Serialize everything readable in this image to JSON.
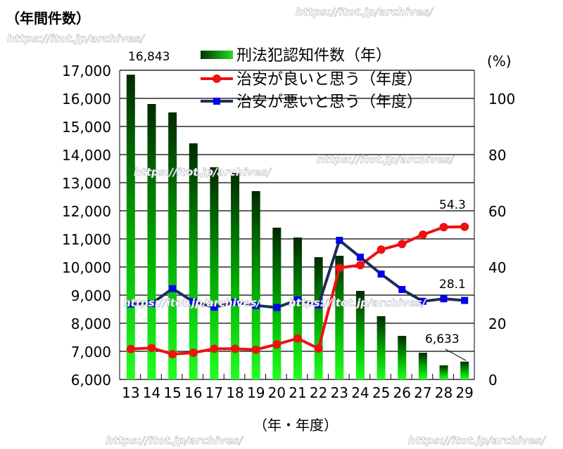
{
  "chart_data": {
    "type": "bar",
    "ylabel": "（年間件数）",
    "y2label": "(%)",
    "xlabel": "（年・年度）",
    "categories": [
      "13",
      "14",
      "15",
      "16",
      "17",
      "18",
      "19",
      "20",
      "21",
      "22",
      "23",
      "24",
      "25",
      "26",
      "27",
      "28",
      "29"
    ],
    "ylim": [
      6000,
      17000
    ],
    "y_ticks": [
      "6,000",
      "7,000",
      "8,000",
      "9,000",
      "10,000",
      "11,000",
      "12,000",
      "13,000",
      "14,000",
      "15,000",
      "16,000",
      "17,000"
    ],
    "y2lim": [
      0,
      100
    ],
    "y2_ticks": [
      "0",
      "20",
      "40",
      "60",
      "80",
      "100"
    ],
    "grid": true,
    "legend_position": "top-right",
    "series": [
      {
        "name": "刑法犯認知件数（年）",
        "kind": "bar",
        "axis": "left",
        "color": "#00cc00",
        "values": [
          16843,
          15800,
          15500,
          14400,
          13550,
          13350,
          12700,
          11400,
          11050,
          10350,
          10400,
          9150,
          8250,
          7550,
          6950,
          6500,
          6633
        ]
      },
      {
        "name": "治安が良いと思う（年度）",
        "kind": "line",
        "axis": "right",
        "color": "#ee1111",
        "values": [
          10.8,
          11.2,
          9,
          9.5,
          10.9,
          10.9,
          10.6,
          12.5,
          14.6,
          11,
          39.7,
          40.7,
          46.2,
          48.2,
          51.5,
          54.2,
          54.3
        ]
      },
      {
        "name": "治安が悪いと思う（年度）",
        "kind": "line",
        "axis": "right",
        "color": "#1a2e5a",
        "values": [
          26.8,
          27,
          32.3,
          27.7,
          25.7,
          27.5,
          26.3,
          25.6,
          28.3,
          26.5,
          49.5,
          43.5,
          37.5,
          32,
          27.8,
          28.7,
          28.1
        ]
      }
    ],
    "annotations": [
      "16,843",
      "54.3",
      "28.1",
      "6,633"
    ]
  },
  "watermark": "https://itot.jp/archives/"
}
